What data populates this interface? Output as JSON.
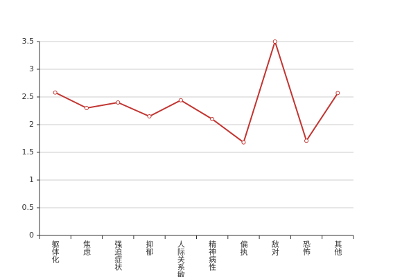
{
  "chart_data": {
    "type": "line",
    "categories": [
      "躯体化",
      "焦虑",
      "强迫症状",
      "抑郁",
      "人际关系敏感",
      "精神病性",
      "偏执",
      "敌对",
      "恐怖",
      "其他"
    ],
    "series": [
      {
        "color": "#c23531",
        "values": [
          2.58,
          2.3,
          2.4,
          2.15,
          2.44,
          2.1,
          1.68,
          3.5,
          1.71,
          2.57
        ]
      }
    ],
    "ylim": [
      0,
      3.5
    ],
    "yticks": [
      0,
      0.5,
      1,
      1.5,
      2,
      2.5,
      3,
      3.5
    ],
    "grid": true
  }
}
